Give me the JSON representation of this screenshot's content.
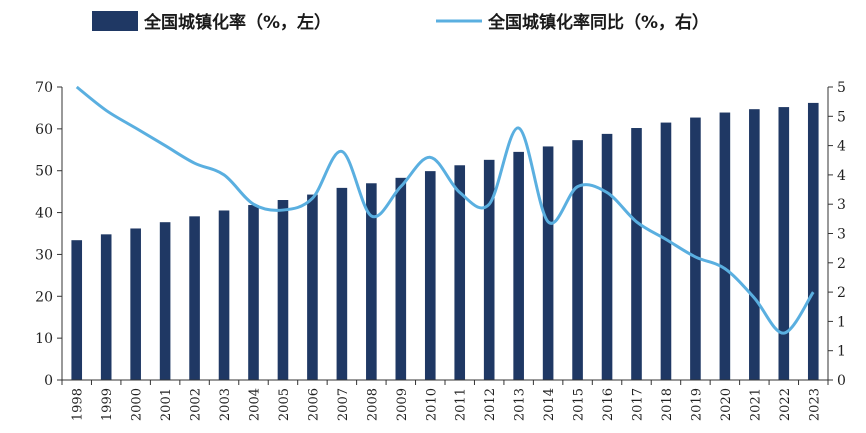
{
  "chart_data": {
    "type": "bar",
    "title": "",
    "legend": {
      "placement": "top",
      "bar_label": "全国城镇化率（%，左）",
      "line_label": "全国城镇化率同比（%，右）"
    },
    "categories": [
      "1998",
      "1999",
      "2000",
      "2001",
      "2002",
      "2003",
      "2004",
      "2005",
      "2006",
      "2007",
      "2008",
      "2009",
      "2010",
      "2011",
      "2012",
      "2013",
      "2014",
      "2015",
      "2016",
      "2017",
      "2018",
      "2019",
      "2020",
      "2021",
      "2022",
      "2023"
    ],
    "series": [
      {
        "name": "全国城镇化率（%，左）",
        "type": "bar",
        "axis": "left",
        "color": "#1f3864",
        "values": [
          33.4,
          34.8,
          36.2,
          37.7,
          39.1,
          40.5,
          41.8,
          43.0,
          44.3,
          45.9,
          47.0,
          48.3,
          49.9,
          51.3,
          52.6,
          54.5,
          55.8,
          57.3,
          58.8,
          60.2,
          61.5,
          62.7,
          63.9,
          64.7,
          65.2,
          66.2
        ]
      },
      {
        "name": "全国城镇化率同比（%，右）",
        "type": "line",
        "axis": "right",
        "color": "#5aafe0",
        "values": [
          5.0,
          4.6,
          4.3,
          4.0,
          3.7,
          3.5,
          3.0,
          2.9,
          3.1,
          3.9,
          2.8,
          3.3,
          3.8,
          3.2,
          3.0,
          4.3,
          2.7,
          3.3,
          3.2,
          2.7,
          2.4,
          2.1,
          1.9,
          1.4,
          0.8,
          1.5
        ]
      }
    ],
    "y_left": {
      "min": 0,
      "max": 70,
      "ticks": [
        0,
        10,
        20,
        30,
        40,
        50,
        60,
        70
      ]
    },
    "y_right": {
      "tick_labels": [
        "0",
        "1",
        "1",
        "2",
        "2",
        "3",
        "3",
        "4",
        "4",
        "5",
        "5"
      ]
    },
    "grid": false
  }
}
